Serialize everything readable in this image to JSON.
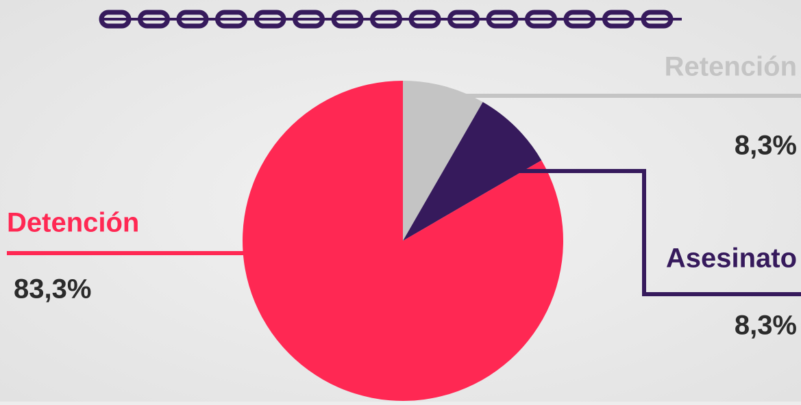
{
  "chart_data": {
    "type": "pie",
    "categories": [
      "Retención",
      "Asesinato",
      "Detención"
    ],
    "values": [
      8.3,
      8.3,
      83.3
    ],
    "value_labels": [
      "8,3%",
      "8,3%",
      "83,3%"
    ],
    "colors": [
      "#c4c4c4",
      "#361a5c",
      "#ff2853"
    ]
  }
}
